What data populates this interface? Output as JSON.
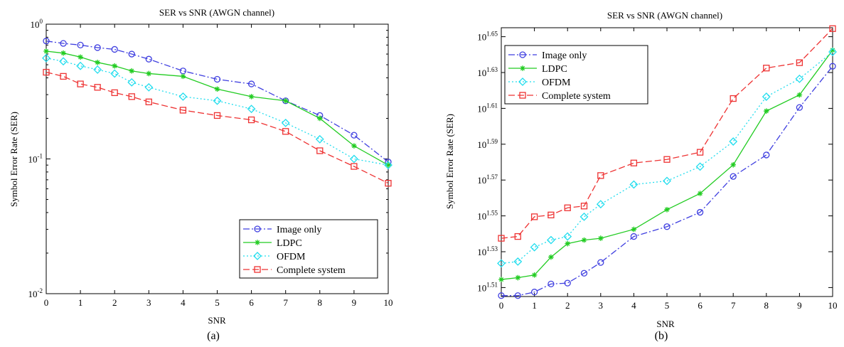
{
  "chart_data": [
    {
      "panel_label": "(a)",
      "type": "line",
      "title": "SER vs SNR (AWGN channel)",
      "xlabel": "SNR",
      "ylabel": "Symbol Error Rate (SER)",
      "xlim": [
        0,
        10
      ],
      "ylim": [
        0.01,
        1
      ],
      "yscale": "log",
      "xticks": [
        0,
        1,
        2,
        3,
        4,
        5,
        6,
        7,
        8,
        9,
        10
      ],
      "yticks": [
        {
          "value": 0.01,
          "base": "10",
          "exp": "-2"
        },
        {
          "value": 0.1,
          "base": "10",
          "exp": "-1"
        },
        {
          "value": 1,
          "base": "10",
          "exp": "0"
        }
      ],
      "legend_position": "bottom-right",
      "x": [
        0,
        0.5,
        1,
        1.5,
        2,
        2.5,
        3,
        4,
        5,
        6,
        7,
        8,
        9,
        10
      ],
      "series": [
        {
          "name": "Image only",
          "color": "#3f3fe0",
          "dash": "dashdot",
          "marker": "circle",
          "values": [
            0.75,
            0.72,
            0.7,
            0.67,
            0.65,
            0.6,
            0.55,
            0.45,
            0.39,
            0.36,
            0.27,
            0.21,
            0.15,
            0.095
          ]
        },
        {
          "name": "LDPC",
          "color": "#22cc22",
          "dash": "solid",
          "marker": "star",
          "values": [
            0.63,
            0.61,
            0.57,
            0.52,
            0.49,
            0.45,
            0.43,
            0.41,
            0.33,
            0.29,
            0.27,
            0.2,
            0.125,
            0.09
          ]
        },
        {
          "name": "OFDM",
          "color": "#22ddee",
          "dash": "dotted",
          "marker": "diamond",
          "values": [
            0.56,
            0.53,
            0.49,
            0.46,
            0.43,
            0.37,
            0.34,
            0.29,
            0.27,
            0.235,
            0.185,
            0.14,
            0.1,
            0.09
          ]
        },
        {
          "name": "Complete system",
          "color": "#ee3333",
          "dash": "dashed",
          "marker": "square",
          "values": [
            0.44,
            0.41,
            0.36,
            0.34,
            0.31,
            0.29,
            0.265,
            0.23,
            0.21,
            0.195,
            0.16,
            0.115,
            0.088,
            0.066
          ]
        }
      ]
    },
    {
      "panel_label": "(b)",
      "type": "line",
      "title": "SER vs SNR (AWGN channel)",
      "xlabel": "SNR",
      "ylabel": "Symbol Error Rate (SER)",
      "xlim": [
        0,
        10
      ],
      "ylim_log10": [
        1.505,
        1.655
      ],
      "yscale": "log",
      "xticks": [
        0,
        1,
        2,
        3,
        4,
        5,
        6,
        7,
        8,
        9,
        10
      ],
      "yticks": [
        {
          "log10": 1.51,
          "base": "10",
          "exp": "1.51"
        },
        {
          "log10": 1.53,
          "base": "10",
          "exp": "1.53"
        },
        {
          "log10": 1.55,
          "base": "10",
          "exp": "1.55"
        },
        {
          "log10": 1.57,
          "base": "10",
          "exp": "1.57"
        },
        {
          "log10": 1.59,
          "base": "10",
          "exp": "1.59"
        },
        {
          "log10": 1.61,
          "base": "10",
          "exp": "1.61"
        },
        {
          "log10": 1.63,
          "base": "10",
          "exp": "1.63"
        },
        {
          "log10": 1.65,
          "base": "10",
          "exp": "1.65"
        }
      ],
      "legend_position": "top-left",
      "x": [
        0,
        0.5,
        1,
        1.5,
        2,
        2.5,
        3,
        4,
        5,
        6,
        7,
        8,
        9,
        10
      ],
      "series": [
        {
          "name": "Image only",
          "color": "#3f3fe0",
          "dash": "dashdot",
          "marker": "circle",
          "values_log10": [
            1.5055,
            1.5055,
            1.5075,
            1.512,
            1.5125,
            1.518,
            1.524,
            1.5385,
            1.544,
            1.552,
            1.572,
            1.584,
            1.6105,
            1.6335
          ]
        },
        {
          "name": "LDPC",
          "color": "#22cc22",
          "dash": "solid",
          "marker": "star",
          "values_log10": [
            1.5145,
            1.5155,
            1.517,
            1.527,
            1.5345,
            1.5365,
            1.5375,
            1.5425,
            1.5535,
            1.5625,
            1.5785,
            1.6085,
            1.6175,
            1.6425
          ]
        },
        {
          "name": "OFDM",
          "color": "#22ddee",
          "dash": "dotted",
          "marker": "diamond",
          "values_log10": [
            1.5235,
            1.5245,
            1.5325,
            1.5365,
            1.5385,
            1.5495,
            1.5565,
            1.5675,
            1.5695,
            1.5775,
            1.5915,
            1.6165,
            1.6265,
            1.6415
          ]
        },
        {
          "name": "Complete system",
          "color": "#ee3333",
          "dash": "dashed",
          "marker": "square",
          "values_log10": [
            1.5375,
            1.5385,
            1.5495,
            1.5505,
            1.5545,
            1.5555,
            1.5725,
            1.5795,
            1.5815,
            1.5855,
            1.6155,
            1.6325,
            1.6355,
            1.6545
          ]
        }
      ]
    }
  ]
}
